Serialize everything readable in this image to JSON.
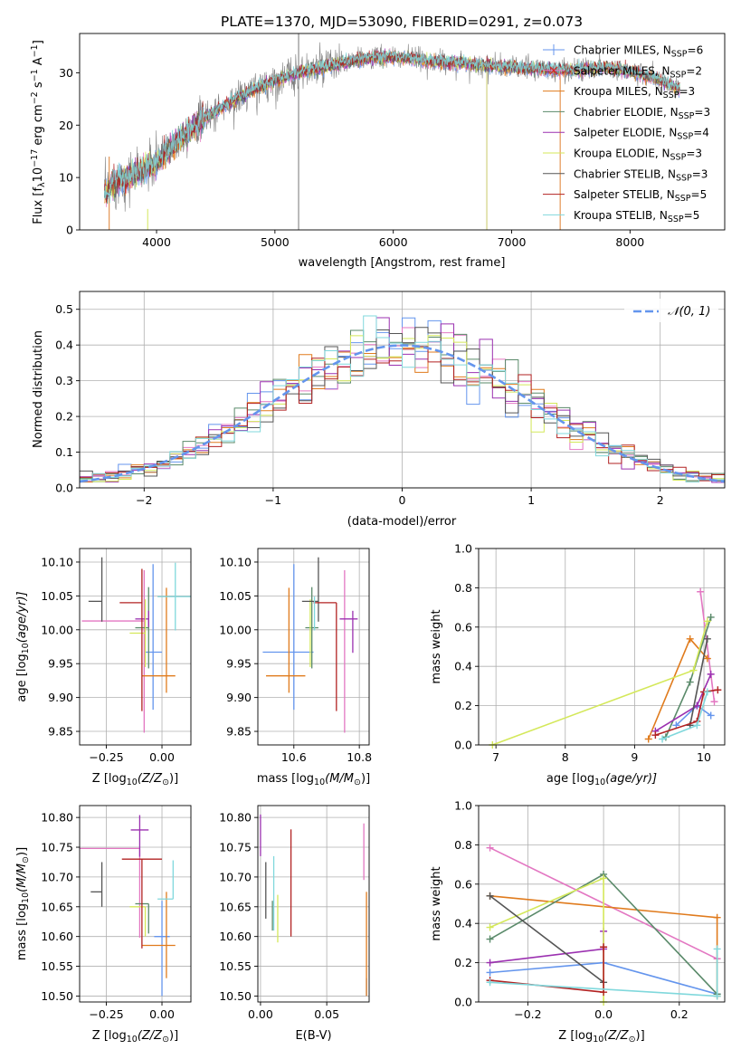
{
  "title": "PLATE=1370, MJD=53090, FIBERID=0291, z=0.073",
  "colors": {
    "Chabrier MILES": "#6495ed",
    "Salpeter MILES": "#e377c2",
    "Kroupa MILES": "#e07b1d",
    "Chabrier ELODIE": "#5a8a6a",
    "Salpeter ELODIE": "#9b30b0",
    "Kroupa ELODIE": "#d4e85a",
    "Chabrier STELIB": "#555555",
    "Salpeter STELIB": "#b22222",
    "Kroupa STELIB": "#80d8dc",
    "data": "#808080",
    "normal": "#6495ed"
  },
  "chart_data": [
    {
      "id": "spectrum",
      "type": "line",
      "xlabel": "wavelength [Angstrom, rest frame]",
      "ylabel_main": "Flux [f",
      "ylabel_sub": "λ",
      "ylabel_rest": "10",
      "ylabel_exp": "−17",
      "ylabel_tail": " erg cm",
      "ylabel_exp2": "−2",
      "ylabel_tail2": " s",
      "ylabel_exp3": "−1",
      "ylabel_tail3": " A",
      "ylabel_exp4": "−1",
      "ylabel_end": "]",
      "xlim": [
        3350,
        8800
      ],
      "ylim": [
        0,
        37.5
      ],
      "xticks": [
        4000,
        5000,
        6000,
        7000,
        8000
      ],
      "yticks": [
        0,
        10,
        20,
        30
      ],
      "continuum": {
        "x": [
          3560,
          3650,
          3750,
          3850,
          3950,
          4050,
          4150,
          4250,
          4350,
          4450,
          4600,
          4800,
          5000,
          5200,
          5400,
          5600,
          5800,
          6000,
          6200,
          6400,
          6600,
          6800,
          7000,
          7200,
          7400,
          7600,
          7800,
          8000,
          8200,
          8400
        ],
        "y": [
          7,
          9,
          10,
          11,
          12,
          14,
          16.5,
          18.5,
          20.5,
          22,
          24,
          26.5,
          28.5,
          30,
          31,
          32,
          32.8,
          33,
          32.6,
          32,
          31.8,
          31.3,
          31,
          30.8,
          30.5,
          30.6,
          31,
          30.3,
          29,
          27
        ]
      },
      "legend": [
        {
          "name": "Chabrier MILES",
          "nssp": "6"
        },
        {
          "name": "Salpeter MILES",
          "nssp": "2"
        },
        {
          "name": "Kroupa MILES",
          "nssp": "3"
        },
        {
          "name": "Chabrier ELODIE",
          "nssp": "3"
        },
        {
          "name": "Salpeter ELODIE",
          "nssp": "4"
        },
        {
          "name": "Kroupa ELODIE",
          "nssp": "3"
        },
        {
          "name": "Chabrier STELIB",
          "nssp": "3"
        },
        {
          "name": "Salpeter STELIB",
          "nssp": "5"
        },
        {
          "name": "Kroupa STELIB",
          "nssp": "5"
        }
      ],
      "legend_prefix": "N",
      "legend_sub": "SSP",
      "legend_placement": "right"
    },
    {
      "id": "residuals",
      "type": "histogram",
      "xlabel": "(data-model)/error",
      "ylabel": "Normed distribution",
      "xlim": [
        -2.5,
        2.5
      ],
      "ylim": [
        0,
        0.55
      ],
      "xticks": [
        -2,
        -1,
        0,
        1,
        2
      ],
      "yticks": [
        0.0,
        0.1,
        0.2,
        0.3,
        0.4,
        0.5
      ],
      "legend_label": "𝒩(0, 1)",
      "legend_placement": "top-right",
      "grid": true
    },
    {
      "id": "age-vs-Z",
      "type": "errorbar",
      "xlabel_main": "Z [log",
      "xlabel_sub": "10",
      "xlabel_tail": "(Z/Z",
      "xlabel_sub2": "⊙",
      "xlabel_end": ")]",
      "ylabel_main": "age  [log",
      "ylabel_sub": "10",
      "ylabel_tail": "(age/yr)]",
      "xlim": [
        -0.37,
        0.13
      ],
      "ylim": [
        9.83,
        10.12
      ],
      "xticks": [
        -0.25,
        0.0
      ],
      "xtick_labels": [
        "−0.25",
        "0.00"
      ],
      "yticks": [
        9.85,
        9.9,
        9.95,
        10.0,
        10.05,
        10.1
      ],
      "ytick_labels": [
        "9.85",
        "9.90",
        "9.95",
        "10.00",
        "10.05",
        "10.10"
      ],
      "points": [
        {
          "s": "Chabrier MILES",
          "x": -0.04,
          "xe": [
            0.04,
            0.04
          ],
          "y": 9.967,
          "ye": [
            0.085,
            0.13
          ]
        },
        {
          "s": "Salpeter MILES",
          "x": -0.08,
          "xe": [
            0.28,
            0.0
          ],
          "y": 10.013,
          "ye": [
            0.165,
            0.075
          ]
        },
        {
          "s": "Kroupa MILES",
          "x": 0.02,
          "xe": [
            0.11,
            0.04
          ],
          "y": 9.932,
          "ye": [
            0.025,
            0.13
          ]
        },
        {
          "s": "Chabrier ELODIE",
          "x": -0.06,
          "xe": [
            0.06,
            0.0
          ],
          "y": 10.003,
          "ye": [
            0.06,
            0.06
          ]
        },
        {
          "s": "Salpeter ELODIE",
          "x": -0.06,
          "xe": [
            0.06,
            0.0
          ],
          "y": 10.016,
          "ye": [
            0.012,
            0.012
          ]
        },
        {
          "s": "Kroupa ELODIE",
          "x": -0.075,
          "xe": [
            0.07,
            0.0
          ],
          "y": 9.995,
          "ye": [
            0.05,
            0.05
          ]
        },
        {
          "s": "Chabrier STELIB",
          "x": -0.27,
          "xe": [
            0.06,
            0.0
          ],
          "y": 10.042,
          "ye": [
            0.03,
            0.065
          ]
        },
        {
          "s": "Salpeter STELIB",
          "x": -0.09,
          "xe": [
            0.1,
            0.0
          ],
          "y": 10.04,
          "ye": [
            0.16,
            0.05
          ]
        },
        {
          "s": "Kroupa STELIB",
          "x": 0.06,
          "xe": [
            0.08,
            0.1
          ],
          "y": 10.049,
          "ye": [
            0.05,
            0.05
          ]
        }
      ]
    },
    {
      "id": "age-vs-mass",
      "type": "errorbar",
      "xlabel_main": "mass [log",
      "xlabel_sub": "10",
      "xlabel_tail": "(M/M",
      "xlabel_sub2": "⊙",
      "xlabel_end": ")]",
      "xlim": [
        10.49,
        10.83
      ],
      "ylim": [
        9.83,
        10.12
      ],
      "xticks": [
        10.6,
        10.8
      ],
      "xtick_labels": [
        "10.6",
        "10.8"
      ],
      "yticks": [
        9.85,
        9.9,
        9.95,
        10.0,
        10.05,
        10.1
      ],
      "ytick_labels": [
        "9.85",
        "9.90",
        "9.95",
        "10.00",
        "10.05",
        "10.10"
      ],
      "points": [
        {
          "s": "Chabrier MILES",
          "x": 10.6,
          "xe": [
            0.095,
            0.06
          ],
          "y": 9.967,
          "ye": [
            0.085,
            0.13
          ]
        },
        {
          "s": "Salpeter MILES",
          "x": 10.755,
          "xe": [
            0.0,
            0.0
          ],
          "y": 10.013,
          "ye": [
            0.165,
            0.075
          ]
        },
        {
          "s": "Kroupa MILES",
          "x": 10.585,
          "xe": [
            0.07,
            0.05
          ],
          "y": 9.932,
          "ye": [
            0.025,
            0.13
          ]
        },
        {
          "s": "Chabrier ELODIE",
          "x": 10.655,
          "xe": [
            0.02,
            0.02
          ],
          "y": 10.003,
          "ye": [
            0.06,
            0.06
          ]
        },
        {
          "s": "Salpeter ELODIE",
          "x": 10.78,
          "xe": [
            0.04,
            0.015
          ],
          "y": 10.016,
          "ye": [
            0.05,
            0.012
          ]
        },
        {
          "s": "Kroupa ELODIE",
          "x": 10.65,
          "xe": [
            0.0,
            0.0
          ],
          "y": 9.995,
          "ye": [
            0.05,
            0.05
          ]
        },
        {
          "s": "Chabrier STELIB",
          "x": 10.675,
          "xe": [
            0.05,
            0.0
          ],
          "y": 10.042,
          "ye": [
            0.03,
            0.065
          ]
        },
        {
          "s": "Salpeter STELIB",
          "x": 10.73,
          "xe": [
            0.07,
            0.0
          ],
          "y": 10.04,
          "ye": [
            0.16,
            0.0
          ]
        },
        {
          "s": "Kroupa STELIB",
          "x": 10.663,
          "xe": [
            0.0,
            0.0
          ],
          "y": 10.049,
          "ye": [
            0.05,
            0.0
          ]
        }
      ]
    },
    {
      "id": "weight-vs-age",
      "type": "line",
      "xlabel_main": "age  [log",
      "xlabel_sub": "10",
      "xlabel_tail": "(age/yr)]",
      "ylabel": "mass weight",
      "xlim": [
        6.75,
        10.3
      ],
      "ylim": [
        0,
        1
      ],
      "xticks": [
        7,
        8,
        9,
        10
      ],
      "yticks": [
        0.0,
        0.2,
        0.4,
        0.6,
        0.8,
        1.0
      ],
      "series": [
        {
          "s": "Chabrier MILES",
          "x": [
            9.6,
            9.9,
            10.1
          ],
          "y": [
            0.1,
            0.2,
            0.15
          ]
        },
        {
          "s": "Salpeter MILES",
          "x": [
            9.95,
            10.15
          ],
          "y": [
            0.78,
            0.22
          ]
        },
        {
          "s": "Kroupa MILES",
          "x": [
            9.2,
            9.8,
            10.05
          ],
          "y": [
            0.03,
            0.54,
            0.44
          ]
        },
        {
          "s": "Chabrier ELODIE",
          "x": [
            9.45,
            9.8,
            10.1
          ],
          "y": [
            0.04,
            0.32,
            0.65
          ]
        },
        {
          "s": "Salpeter ELODIE",
          "x": [
            9.3,
            9.9,
            10.1
          ],
          "y": [
            0.07,
            0.2,
            0.36
          ]
        },
        {
          "s": "Kroupa ELODIE",
          "x": [
            6.95,
            9.85,
            10.05
          ],
          "y": [
            0.0,
            0.38,
            0.63
          ]
        },
        {
          "s": "Chabrier STELIB",
          "x": [
            9.8,
            10.05
          ],
          "y": [
            0.1,
            0.54
          ]
        },
        {
          "s": "Salpeter STELIB",
          "x": [
            9.3,
            9.9,
            10.0,
            10.2
          ],
          "y": [
            0.05,
            0.12,
            0.27,
            0.28
          ]
        },
        {
          "s": "Kroupa STELIB",
          "x": [
            9.4,
            9.9,
            10.05
          ],
          "y": [
            0.03,
            0.1,
            0.27
          ]
        }
      ]
    },
    {
      "id": "mass-vs-Z",
      "type": "errorbar",
      "xlabel_main": "Z [log",
      "xlabel_sub": "10",
      "xlabel_tail": "(Z/Z",
      "xlabel_sub2": "⊙",
      "xlabel_end": ")]",
      "ylabel_main": "mass [log",
      "ylabel_sub": "10",
      "ylabel_tail": "(M/M",
      "ylabel_sub2": "⊙",
      "ylabel_end": ")]",
      "xlim": [
        -0.37,
        0.13
      ],
      "ylim": [
        10.49,
        10.82
      ],
      "xticks": [
        -0.25,
        0.0
      ],
      "xtick_labels": [
        "−0.25",
        "0.00"
      ],
      "yticks": [
        10.5,
        10.55,
        10.6,
        10.65,
        10.7,
        10.75,
        10.8
      ],
      "ytick_labels": [
        "10.50",
        "10.55",
        "10.60",
        "10.65",
        "10.70",
        "10.75",
        "10.80"
      ],
      "points": [
        {
          "s": "Chabrier MILES",
          "x": 0.0,
          "xe": [
            0.035,
            0.035
          ],
          "y": 10.6,
          "ye": [
            0.1,
            0.06
          ]
        },
        {
          "s": "Salpeter MILES",
          "x": -0.1,
          "xe": [
            0.27,
            0.0
          ],
          "y": 10.748,
          "ye": [
            0.15,
            0.0
          ]
        },
        {
          "s": "Kroupa MILES",
          "x": 0.02,
          "xe": [
            0.11,
            0.04
          ],
          "y": 10.585,
          "ye": [
            0.055,
            0.09
          ]
        },
        {
          "s": "Chabrier ELODIE",
          "x": -0.06,
          "xe": [
            0.06,
            0.0
          ],
          "y": 10.655,
          "ye": [
            0.05,
            0.0
          ]
        },
        {
          "s": "Salpeter ELODIE",
          "x": -0.1,
          "xe": [
            0.04,
            0.04
          ],
          "y": 10.779,
          "ye": [
            0.045,
            0.025
          ]
        },
        {
          "s": "Kroupa ELODIE",
          "x": -0.075,
          "xe": [
            0.07,
            0.0
          ],
          "y": 10.65,
          "ye": [
            0.05,
            0.0
          ]
        },
        {
          "s": "Chabrier STELIB",
          "x": -0.27,
          "xe": [
            0.05,
            0.0
          ],
          "y": 10.675,
          "ye": [
            0.025,
            0.05
          ]
        },
        {
          "s": "Salpeter STELIB",
          "x": -0.09,
          "xe": [
            0.09,
            0.09
          ],
          "y": 10.73,
          "ye": [
            0.15,
            0.0
          ]
        },
        {
          "s": "Kroupa STELIB",
          "x": 0.05,
          "xe": [
            0.07,
            0.0
          ],
          "y": 10.663,
          "ye": [
            0.0,
            0.065
          ]
        }
      ]
    },
    {
      "id": "mass-vs-ebv",
      "type": "errorbar",
      "xlabel": "E(B-V)",
      "xlim": [
        -0.002,
        0.082
      ],
      "ylim": [
        10.49,
        10.82
      ],
      "xticks": [
        0.0,
        0.05
      ],
      "xtick_labels": [
        "0.00",
        "0.05"
      ],
      "yticks": [
        10.5,
        10.55,
        10.6,
        10.65,
        10.7,
        10.75,
        10.8
      ],
      "ytick_labels": [
        "10.50",
        "10.55",
        "10.60",
        "10.65",
        "10.70",
        "10.75",
        "10.80"
      ],
      "points": [
        {
          "s": "Chabrier MILES",
          "x": 0.08,
          "y": 10.53,
          "ye": [
            0.03,
            0.0
          ]
        },
        {
          "s": "Salpeter MILES",
          "x": 0.078,
          "y": 10.74,
          "ye": [
            0.045,
            0.05
          ]
        },
        {
          "s": "Kroupa MILES",
          "x": 0.08,
          "y": 10.6,
          "ye": [
            0.1,
            0.075
          ]
        },
        {
          "s": "Chabrier ELODIE",
          "x": 0.009,
          "y": 10.66,
          "ye": [
            0.05,
            0.0
          ]
        },
        {
          "s": "Salpeter ELODIE",
          "x": 0.0,
          "y": 10.77,
          "ye": [
            0.035,
            0.035
          ]
        },
        {
          "s": "Kroupa ELODIE",
          "x": 0.013,
          "y": 10.63,
          "ye": [
            0.04,
            0.04
          ]
        },
        {
          "s": "Chabrier STELIB",
          "x": 0.004,
          "y": 10.68,
          "ye": [
            0.05,
            0.045
          ]
        },
        {
          "s": "Salpeter STELIB",
          "x": 0.023,
          "y": 10.7,
          "ye": [
            0.1,
            0.08
          ]
        },
        {
          "s": "Kroupa STELIB",
          "x": 0.01,
          "y": 10.66,
          "ye": [
            0.05,
            0.075
          ]
        }
      ]
    },
    {
      "id": "weight-vs-Z",
      "type": "line",
      "xlabel_main": "Z [log",
      "xlabel_sub": "10",
      "xlabel_tail": "(Z/Z",
      "xlabel_sub2": "⊙",
      "xlabel_end": ")]",
      "ylabel": "mass weight",
      "xlim": [
        -0.33,
        0.32
      ],
      "ylim": [
        0,
        1
      ],
      "xticks": [
        -0.2,
        0.0,
        0.2
      ],
      "xtick_labels": [
        "−0.2",
        "0.0",
        "0.2"
      ],
      "yticks": [
        0.0,
        0.2,
        0.4,
        0.6,
        0.8,
        1.0
      ],
      "series": [
        {
          "s": "Chabrier MILES",
          "x": [
            -0.3,
            0.0,
            0.3
          ],
          "y": [
            0.15,
            0.2,
            0.04
          ]
        },
        {
          "s": "Salpeter MILES",
          "x": [
            -0.3,
            0.3
          ],
          "y": [
            0.785,
            0.22
          ]
        },
        {
          "s": "Kroupa MILES",
          "x": [
            -0.3,
            0.3,
            0.3
          ],
          "y": [
            0.54,
            0.43,
            0.03
          ]
        },
        {
          "s": "Chabrier ELODIE",
          "x": [
            -0.3,
            0.0,
            0.3
          ],
          "y": [
            0.32,
            0.65,
            0.04
          ]
        },
        {
          "s": "Salpeter ELODIE",
          "x": [
            -0.3,
            0.0,
            0.0
          ],
          "y": [
            0.2,
            0.27,
            0.36
          ]
        },
        {
          "s": "Kroupa ELODIE",
          "x": [
            -0.3,
            0.0,
            0.0
          ],
          "y": [
            0.38,
            0.63,
            0.0
          ]
        },
        {
          "s": "Chabrier STELIB",
          "x": [
            -0.3,
            0.0
          ],
          "y": [
            0.54,
            0.1
          ]
        },
        {
          "s": "Salpeter STELIB",
          "x": [
            -0.3,
            0.0,
            0.0
          ],
          "y": [
            0.11,
            0.05,
            0.28
          ]
        },
        {
          "s": "Kroupa STELIB",
          "x": [
            -0.3,
            0.3,
            0.3
          ],
          "y": [
            0.1,
            0.03,
            0.27
          ]
        }
      ]
    }
  ]
}
